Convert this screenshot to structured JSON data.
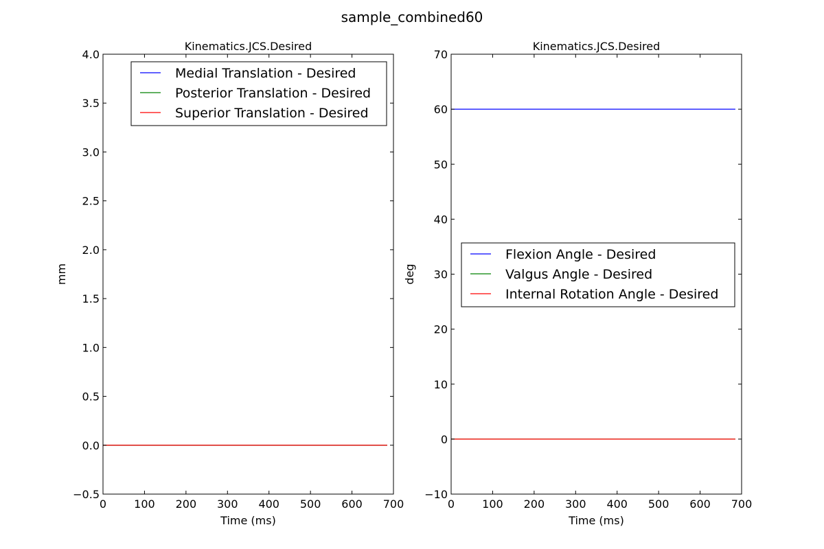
{
  "figure": {
    "title": "sample_combined60"
  },
  "chart_data": [
    {
      "type": "line",
      "title": "Kinematics.JCS.Desired",
      "xlabel": "Time (ms)",
      "ylabel": "mm",
      "xlim": [
        0,
        700
      ],
      "ylim": [
        -0.5,
        4.0
      ],
      "xticks": [
        "0",
        "100",
        "200",
        "300",
        "400",
        "500",
        "600",
        "700"
      ],
      "yticks": [
        "−0.5",
        "0.0",
        "0.5",
        "1.0",
        "1.5",
        "2.0",
        "2.5",
        "3.0",
        "3.5",
        "4.0"
      ],
      "legend_position": "top-right",
      "series": [
        {
          "name": "Medial Translation - Desired",
          "color": "#0000ff",
          "x": [
            0,
            685
          ],
          "y": [
            0,
            0
          ]
        },
        {
          "name": "Posterior Translation - Desired",
          "color": "#008000",
          "x": [
            0,
            685
          ],
          "y": [
            0,
            0
          ]
        },
        {
          "name": "Superior Translation - Desired",
          "color": "#ff0000",
          "x": [
            0,
            685
          ],
          "y": [
            0,
            0
          ]
        }
      ]
    },
    {
      "type": "line",
      "title": "Kinematics.JCS.Desired",
      "xlabel": "Time (ms)",
      "ylabel": "deg",
      "xlim": [
        0,
        700
      ],
      "ylim": [
        -10,
        70
      ],
      "xticks": [
        "0",
        "100",
        "200",
        "300",
        "400",
        "500",
        "600",
        "700"
      ],
      "yticks": [
        "−10",
        "0",
        "10",
        "20",
        "30",
        "40",
        "50",
        "60",
        "70"
      ],
      "legend_position": "center-right",
      "series": [
        {
          "name": "Flexion Angle - Desired",
          "color": "#0000ff",
          "x": [
            0,
            685
          ],
          "y": [
            60,
            60
          ]
        },
        {
          "name": "Valgus Angle - Desired",
          "color": "#008000",
          "x": [
            0,
            685
          ],
          "y": [
            0,
            0
          ]
        },
        {
          "name": "Internal Rotation Angle - Desired",
          "color": "#ff0000",
          "x": [
            0,
            685
          ],
          "y": [
            0,
            0
          ]
        }
      ]
    }
  ]
}
